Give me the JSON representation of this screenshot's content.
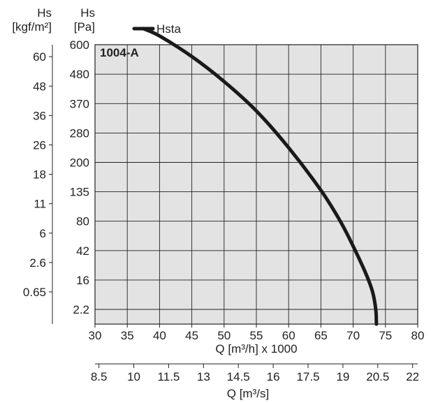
{
  "chart_data": {
    "type": "line",
    "legend": {
      "label": "Hsta",
      "placement": "top-left"
    },
    "curve_label": "1004-A",
    "grid": true,
    "left_axis_pa": {
      "title": "Hs",
      "unit": "[Pa]",
      "ticks": [
        "2.2",
        "16",
        "42",
        "80",
        "135",
        "200",
        "280",
        "370",
        "480",
        "600"
      ]
    },
    "left_axis_kgf": {
      "title": "Hs",
      "unit": "[kgf/m²]",
      "ticks": [
        "0.65",
        "2.6",
        "6",
        "11",
        "18",
        "26",
        "36",
        "48",
        "60"
      ]
    },
    "x_axis_m3h": {
      "label": "Q [m³/h] x 1000",
      "ticks": [
        "30",
        "35",
        "40",
        "45",
        "50",
        "55",
        "60",
        "65",
        "70",
        "75",
        "80"
      ],
      "range": [
        30,
        80
      ]
    },
    "x_axis_m3s": {
      "label": "Q [m³/s]",
      "ticks": [
        "8.5",
        "10",
        "11.5",
        "13",
        "14.5",
        "16",
        "17.5",
        "19",
        "20.5",
        "22"
      ],
      "range": [
        8.33,
        22.22
      ]
    },
    "series": [
      {
        "name": "Hsta",
        "color": "#1a1a1a",
        "points": [
          {
            "q": 37.5,
            "pa_tick_pos": 9.55
          },
          {
            "q": 40,
            "pa_tick_pos": 9.3
          },
          {
            "q": 45,
            "pa_tick_pos": 8.6
          },
          {
            "q": 50,
            "pa_tick_pos": 7.75
          },
          {
            "q": 55,
            "pa_tick_pos": 6.75
          },
          {
            "q": 60,
            "pa_tick_pos": 5.5
          },
          {
            "q": 65,
            "pa_tick_pos": 4.05
          },
          {
            "q": 68,
            "pa_tick_pos": 3.0
          },
          {
            "q": 70,
            "pa_tick_pos": 2.15
          },
          {
            "q": 72,
            "pa_tick_pos": 1.2
          },
          {
            "q": 73,
            "pa_tick_pos": 0.6
          },
          {
            "q": 73.5,
            "pa_tick_pos": 0.0
          },
          {
            "q": 73.6,
            "pa_tick_pos": -0.5
          }
        ]
      }
    ]
  }
}
